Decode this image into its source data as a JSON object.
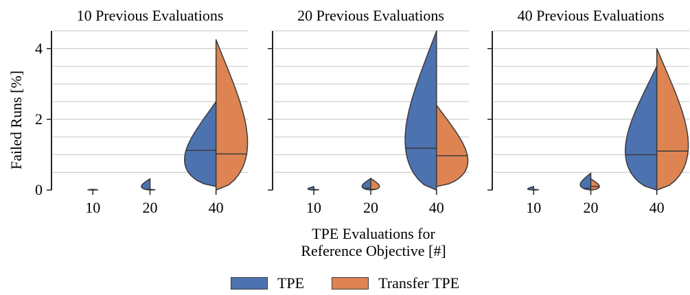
{
  "chart_data": [
    {
      "type": "violin",
      "title": "10 Previous Evaluations",
      "ylabel": "Failed Runs [%]",
      "categories": [
        "10",
        "20",
        "40"
      ],
      "yticks": [
        "0",
        "2",
        "4"
      ],
      "ylim": [
        0,
        4.5
      ],
      "groups": [
        {
          "category": "10",
          "TPE": {
            "min": 0.0,
            "max": 0.02,
            "median": 0.0
          },
          "Transfer TPE": {
            "min": 0.0,
            "max": 0.02,
            "median": 0.0
          }
        },
        {
          "category": "20",
          "TPE": {
            "min": 0.0,
            "max": 0.32,
            "median": 0.02
          },
          "Transfer TPE": {
            "min": 0.0,
            "max": 0.02,
            "median": 0.0
          }
        },
        {
          "category": "40",
          "TPE": {
            "min": 0.1,
            "max": 2.5,
            "median": 1.12
          },
          "Transfer TPE": {
            "min": 0.0,
            "max": 4.25,
            "median": 1.02
          }
        }
      ]
    },
    {
      "type": "violin",
      "title": "20 Previous Evaluations",
      "categories": [
        "10",
        "20",
        "40"
      ],
      "yticks": [
        "0",
        "2",
        "4"
      ],
      "ylim": [
        0,
        4.5
      ],
      "groups": [
        {
          "category": "10",
          "TPE": {
            "min": 0.0,
            "max": 0.1,
            "median": 0.0
          },
          "Transfer TPE": {
            "min": 0.0,
            "max": 0.02,
            "median": 0.0
          }
        },
        {
          "category": "20",
          "TPE": {
            "min": 0.0,
            "max": 0.33,
            "median": 0.05
          },
          "Transfer TPE": {
            "min": 0.0,
            "max": 0.33,
            "median": 0.02
          }
        },
        {
          "category": "40",
          "TPE": {
            "min": 0.0,
            "max": 4.5,
            "median": 1.18
          },
          "Transfer TPE": {
            "min": 0.1,
            "max": 2.4,
            "median": 0.97
          }
        }
      ]
    },
    {
      "type": "violin",
      "title": "40 Previous Evaluations",
      "categories": [
        "10",
        "20",
        "40"
      ],
      "yticks": [
        "0",
        "2",
        "4"
      ],
      "ylim": [
        0,
        4.5
      ],
      "groups": [
        {
          "category": "10",
          "TPE": {
            "min": 0.0,
            "max": 0.1,
            "median": 0.0
          },
          "Transfer TPE": {
            "min": 0.0,
            "max": 0.02,
            "median": 0.0
          }
        },
        {
          "category": "20",
          "TPE": {
            "min": 0.0,
            "max": 0.48,
            "median": 0.05
          },
          "Transfer TPE": {
            "min": 0.0,
            "max": 0.32,
            "median": 0.1
          }
        },
        {
          "category": "40",
          "TPE": {
            "min": 0.0,
            "max": 3.5,
            "median": 1.0
          },
          "Transfer TPE": {
            "min": 0.0,
            "max": 4.0,
            "median": 1.1
          }
        }
      ]
    }
  ],
  "xlabel_line1": "TPE Evaluations for",
  "xlabel_line2": "Reference Objective [#]",
  "legend": [
    {
      "label": "TPE",
      "color": "#4c72b0"
    },
    {
      "label": "Transfer TPE",
      "color": "#dd8452"
    }
  ],
  "colors": {
    "TPE": "#4c72b0",
    "Transfer TPE": "#dd8452",
    "grid": "#cccccc",
    "outline": "#3a3a3a"
  }
}
